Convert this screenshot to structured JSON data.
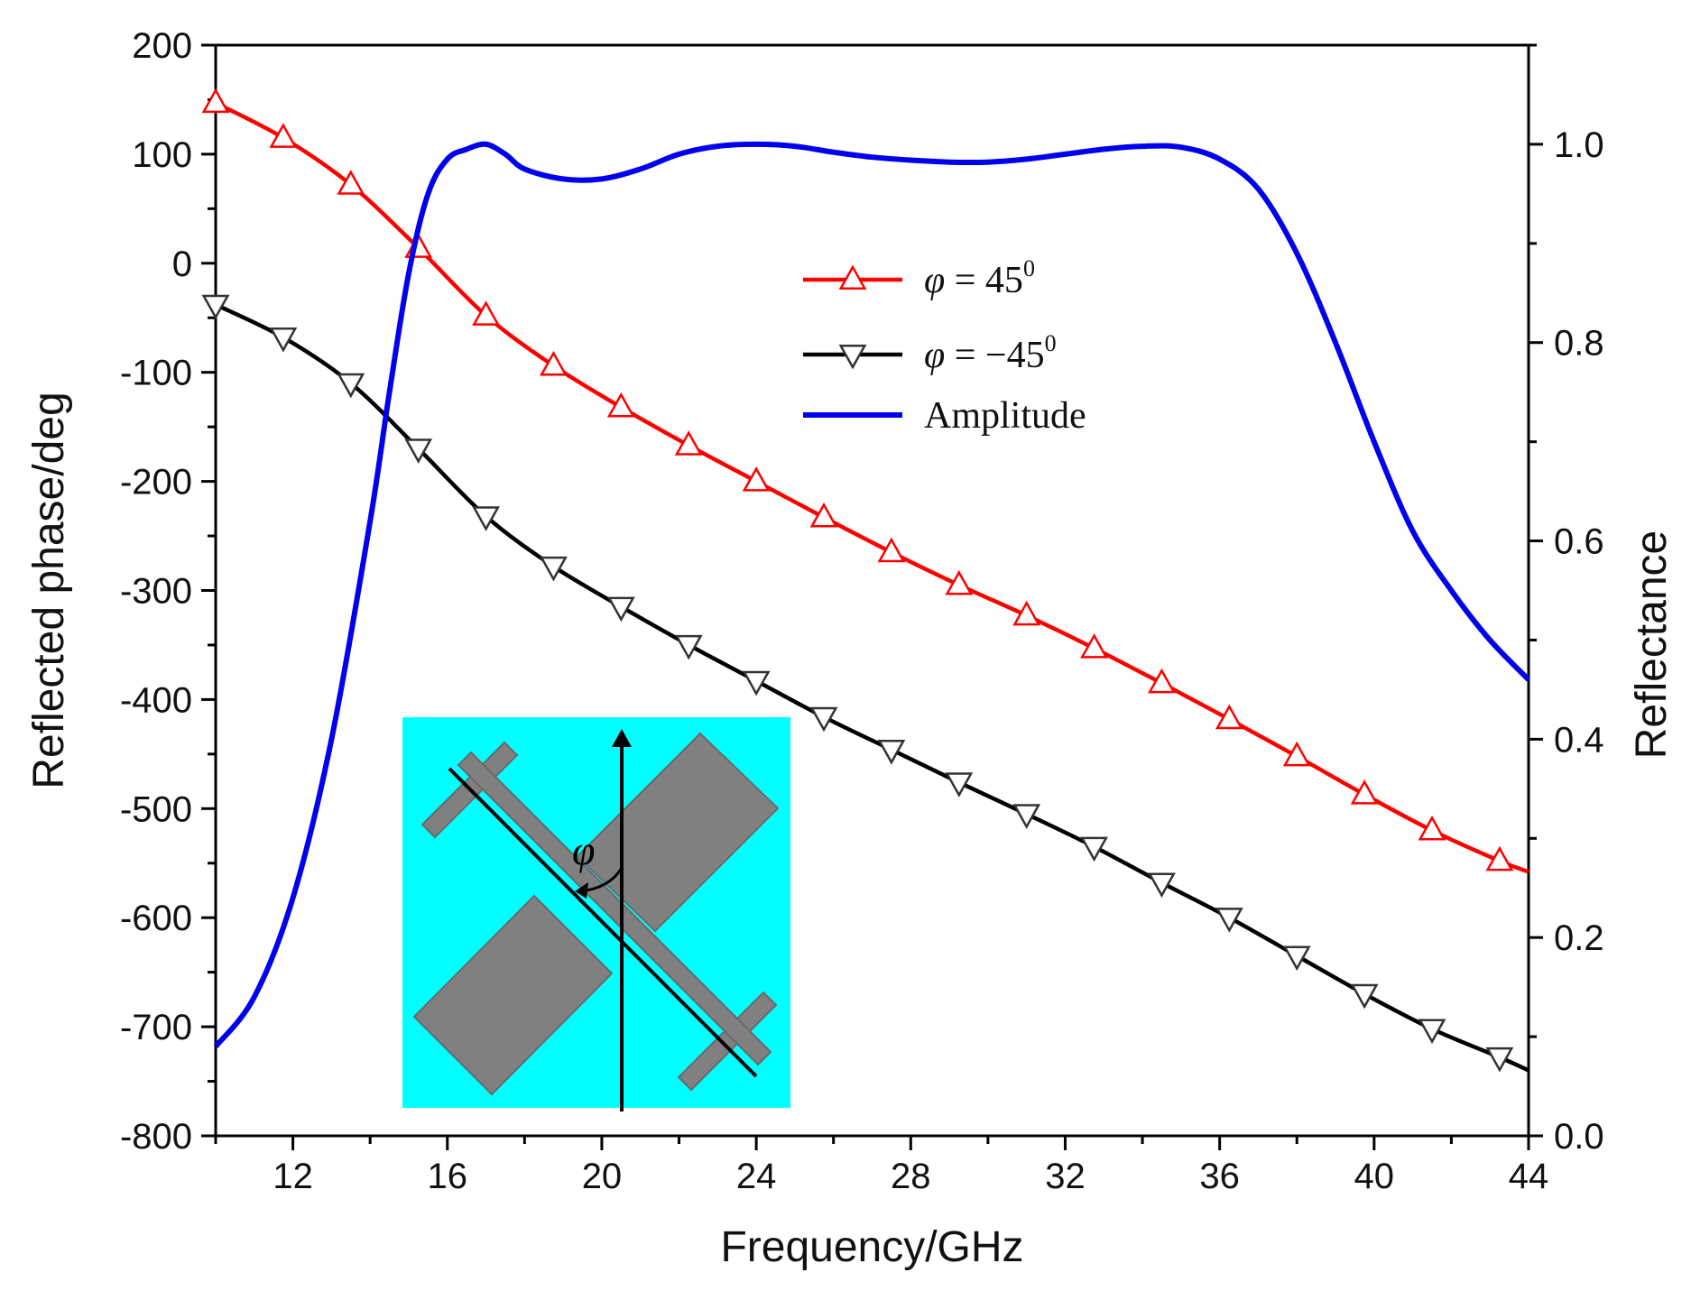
{
  "chart_data": {
    "type": "line",
    "title": "",
    "xlabel": "Frequency/GHz",
    "ylabel_left": "Reflected phase/deg",
    "ylabel_right": "Reflectance",
    "xlim": [
      10,
      44
    ],
    "ylim_left": [
      -800,
      200
    ],
    "ylim_right": [
      0.0,
      1.1
    ],
    "x_ticks": [
      12,
      16,
      20,
      24,
      28,
      32,
      36,
      40,
      44
    ],
    "y_left_ticks": [
      200,
      100,
      0,
      -100,
      -200,
      -300,
      -400,
      -500,
      -600,
      -700,
      -800
    ],
    "y_right_ticks": [
      "1.0",
      "0.8",
      "0.6",
      "0.4",
      "0.2",
      "0.0"
    ],
    "grid": false,
    "legend_position": "upper-center",
    "series": [
      {
        "name": "φ = 45⁰",
        "label_prefix": "φ",
        "label_eq": " = 45",
        "label_sup": "0",
        "axis": "left",
        "color": "#ff0000",
        "marker": "triangle-up",
        "x": [
          10,
          11.75,
          13.5,
          15.25,
          17,
          18.75,
          20.5,
          22.25,
          24,
          25.75,
          27.5,
          29.25,
          31,
          32.75,
          34.5,
          36.25,
          38,
          39.75,
          41.5,
          43.25,
          44
        ],
        "values": [
          147,
          115,
          72,
          14,
          -48,
          -94,
          -132,
          -167,
          -200,
          -233,
          -265,
          -295,
          -323,
          -353,
          -385,
          -418,
          -452,
          -487,
          -520,
          -548,
          -558
        ]
      },
      {
        "name": "φ = −45⁰",
        "label_prefix": "φ",
        "label_eq": " = −45",
        "label_sup": "0",
        "axis": "left",
        "color": "#000000",
        "marker": "triangle-down",
        "x": [
          10,
          11.75,
          13.5,
          15.25,
          17,
          18.75,
          20.5,
          22.25,
          24,
          25.75,
          27.5,
          29.25,
          31,
          32.75,
          34.5,
          36.25,
          38,
          39.75,
          41.5,
          43.25,
          44
        ],
        "values": [
          -38,
          -68,
          -110,
          -170,
          -232,
          -278,
          -315,
          -350,
          -383,
          -416,
          -446,
          -476,
          -505,
          -535,
          -568,
          -600,
          -635,
          -670,
          -702,
          -728,
          -740
        ]
      },
      {
        "name": "Amplitude",
        "label_prefix": "",
        "label_eq": "Amplitude",
        "label_sup": "",
        "axis": "right",
        "color": "#0000ee",
        "marker": "none",
        "x": [
          10,
          11,
          12,
          13,
          14,
          14.5,
          15,
          15.5,
          16,
          16.5,
          17,
          17.5,
          18,
          19,
          20,
          21,
          22,
          23,
          24,
          25,
          26,
          27,
          28,
          29,
          30,
          31,
          32,
          33,
          34,
          35,
          36,
          37,
          38,
          39,
          40,
          41,
          42,
          43,
          44
        ],
        "values": [
          0.09,
          0.14,
          0.24,
          0.4,
          0.62,
          0.75,
          0.87,
          0.95,
          0.985,
          0.995,
          1.0,
          0.99,
          0.975,
          0.965,
          0.965,
          0.975,
          0.99,
          0.998,
          1.0,
          0.998,
          0.992,
          0.987,
          0.984,
          0.982,
          0.982,
          0.985,
          0.99,
          0.995,
          0.998,
          0.997,
          0.985,
          0.955,
          0.89,
          0.8,
          0.7,
          0.61,
          0.55,
          0.5,
          0.46
        ]
      }
    ]
  },
  "inset": {
    "angle_label": "φ",
    "background": "#00ffff",
    "element_color": "#808080"
  }
}
